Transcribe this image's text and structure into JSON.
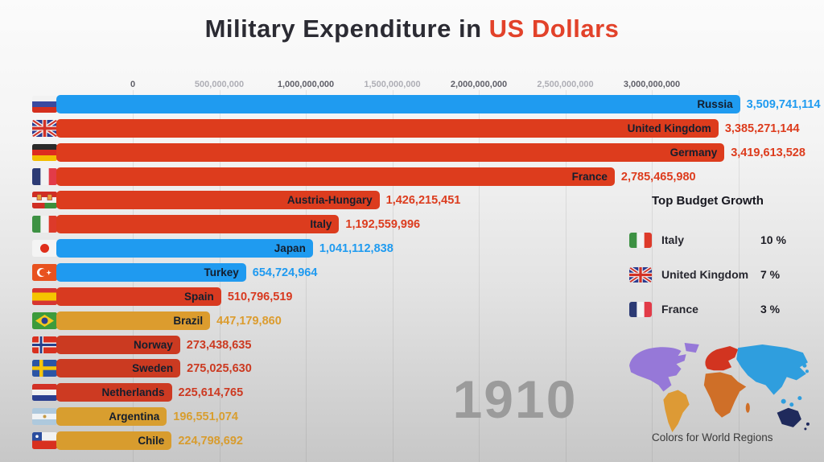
{
  "title": {
    "prefix": "Military Expenditure in ",
    "highlight": "US Dollars"
  },
  "axis": {
    "ticks": [
      "0",
      "500,000,000",
      "1,000,000,000",
      "1,500,000,000",
      "2,000,000,000",
      "2,500,000,000",
      "3,000,000,000"
    ]
  },
  "chart_data": {
    "type": "bar",
    "orientation": "horizontal",
    "title": "Military Expenditure in US Dollars",
    "year": "1910",
    "xlim": [
      0,
      3500000000
    ],
    "axis_ticks": [
      0,
      500000000,
      1000000000,
      1500000000,
      2000000000,
      2500000000,
      3000000000
    ],
    "bars": [
      {
        "country": "Russia",
        "value": 3509741114,
        "display": "3,509,741,114",
        "region": "asia",
        "flag": "russia",
        "color": "#1f9bf0"
      },
      {
        "country": "United Kingdom",
        "value": 3385271144,
        "display": "3,385,271,144",
        "region": "europe",
        "flag": "uk",
        "color": "#dd3c1d"
      },
      {
        "country": "Germany",
        "value": 3419613528,
        "display": "3,419,613,528",
        "region": "europe",
        "flag": "germany",
        "color": "#dd3c1d"
      },
      {
        "country": "France",
        "value": 2785465980,
        "display": "2,785,465,980",
        "region": "europe",
        "flag": "france",
        "color": "#dd3c1d"
      },
      {
        "country": "Austria-Hungary",
        "value": 1426215451,
        "display": "1,426,215,451",
        "region": "europe",
        "flag": "austriahungary",
        "color": "#dc3c1e"
      },
      {
        "country": "Italy",
        "value": 1192559996,
        "display": "1,192,559,996",
        "region": "europe",
        "flag": "italy",
        "color": "#dc3c1e"
      },
      {
        "country": "Japan",
        "value": 1041112838,
        "display": "1,041,112,838",
        "region": "asia",
        "flag": "japan",
        "color": "#1f9bf0"
      },
      {
        "country": "Turkey",
        "value": 654724964,
        "display": "654,724,964",
        "region": "asia",
        "flag": "turkey",
        "color": "#1f9af0"
      },
      {
        "country": "Spain",
        "value": 510796519,
        "display": "510,796,519",
        "region": "europe",
        "flag": "spain",
        "color": "#d83a20"
      },
      {
        "country": "Brazil",
        "value": 447179860,
        "display": "447,179,860",
        "region": "south-america",
        "flag": "brazil",
        "color": "#dc9c2e"
      },
      {
        "country": "Norway",
        "value": 273438635,
        "display": "273,438,635",
        "region": "europe",
        "flag": "norway",
        "color": "#cb3a21"
      },
      {
        "country": "Sweden",
        "value": 275025630,
        "display": "275,025,630",
        "region": "europe",
        "flag": "sweden",
        "color": "#cb3a21"
      },
      {
        "country": "Netherlands",
        "value": 225614765,
        "display": "225,614,765",
        "region": "europe",
        "flag": "netherlands",
        "color": "#cd3a22"
      },
      {
        "country": "Argentina",
        "value": 196551074,
        "display": "196,551,074",
        "region": "south-america",
        "flag": "argentina",
        "color": "#d89e2f"
      },
      {
        "country": "Chile",
        "value": 224798692,
        "display": "224,798,692",
        "region": "south-america",
        "flag": "chile",
        "color": "#d89c2e"
      }
    ],
    "legend_position": "right"
  },
  "growth_panel": {
    "title": "Top Budget Growth",
    "items": [
      {
        "country": "Italy",
        "growth": "10 %",
        "flag": "italy"
      },
      {
        "country": "United Kingdom",
        "growth": "7 %",
        "flag": "uk"
      },
      {
        "country": "France",
        "growth": "3 %",
        "flag": "france"
      }
    ]
  },
  "year_label": "1910",
  "map": {
    "caption": "Colors for World Regions",
    "region_colors": {
      "north-america": "#9678d8",
      "south-america": "#dd9a35",
      "europe": "#d23420",
      "africa": "#cf6f28",
      "asia": "#2f9ede",
      "oceania": "#1f2a5c"
    }
  }
}
